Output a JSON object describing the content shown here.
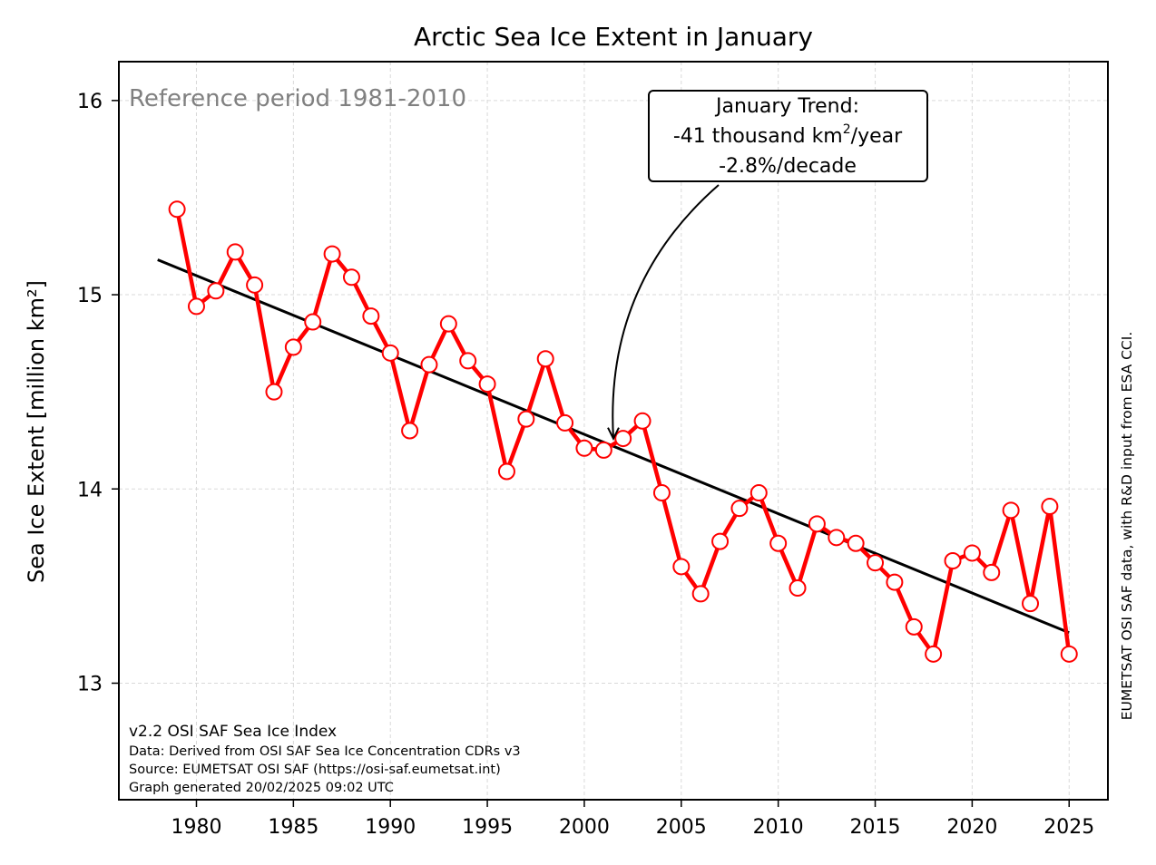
{
  "chart_data": {
    "type": "line",
    "title": "Arctic Sea Ice Extent in January",
    "ylabel": "Sea Ice Extent [million km²]",
    "xlabel": "",
    "xlim": [
      1976,
      2027
    ],
    "ylim": [
      12.4,
      16.2
    ],
    "xticks": [
      "1980",
      "1985",
      "1990",
      "1995",
      "2000",
      "2005",
      "2010",
      "2015",
      "2020",
      "2025"
    ],
    "yticks": [
      "13",
      "14",
      "15",
      "16"
    ],
    "grid": true,
    "reference_text": "Reference period 1981-2010",
    "series": [
      {
        "x": [
          1979,
          1980,
          1981,
          1982,
          1983,
          1984,
          1985,
          1986,
          1987,
          1988,
          1989,
          1990,
          1991,
          1992,
          1993,
          1994,
          1995,
          1996,
          1997,
          1998,
          1999,
          2000,
          2001,
          2002,
          2003,
          2004,
          2005,
          2006,
          2007,
          2008,
          2009,
          2010,
          2011,
          2012,
          2013,
          2014,
          2015,
          2016,
          2017,
          2018,
          2019,
          2020,
          2021,
          2022,
          2023,
          2024,
          2025
        ],
        "values": [
          15.44,
          14.94,
          15.02,
          15.22,
          15.05,
          14.5,
          14.73,
          14.86,
          15.21,
          15.09,
          14.89,
          14.7,
          14.3,
          14.64,
          14.85,
          14.66,
          14.54,
          14.09,
          14.36,
          14.67,
          14.34,
          14.21,
          14.2,
          14.26,
          14.35,
          13.98,
          13.6,
          13.46,
          13.73,
          13.9,
          13.98,
          13.72,
          13.49,
          13.82,
          13.75,
          13.72,
          13.62,
          13.52,
          13.29,
          13.15,
          13.63,
          13.67,
          13.57,
          13.89,
          13.41,
          13.91,
          13.15
        ],
        "color": "#ff0000",
        "marker_face": "#ffffff"
      }
    ],
    "trend": {
      "x": [
        1978,
        2025
      ],
      "y": [
        15.18,
        13.26
      ],
      "color": "#000000"
    },
    "annotation": {
      "line1": "January Trend:",
      "line2_pre": "-41 thousand km",
      "line2_sup": "2",
      "line2_post": "/year",
      "line3": "-2.8%/decade",
      "arrow_target": [
        2001.5,
        14.25
      ]
    },
    "footer": {
      "line1": "v2.2 OSI SAF Sea Ice Index",
      "line2": "Data: Derived from OSI SAF Sea Ice Concentration CDRs v3",
      "line3": "Source: EUMETSAT OSI SAF (https://osi-saf.eumetsat.int)",
      "line4": "Graph generated 20/02/2025 09:02 UTC"
    },
    "side_text": "EUMETSAT OSI SAF data, with R&D input from ESA CCI."
  }
}
